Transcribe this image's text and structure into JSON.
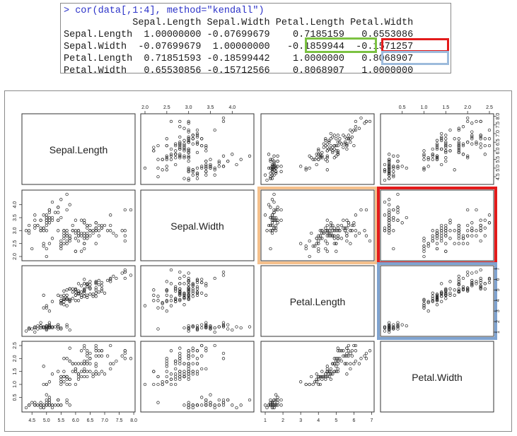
{
  "console": {
    "command": "> cor(data[,1:4], method=\"kendall\")",
    "column_headers": [
      "Sepal.Length",
      "Sepal.Width",
      "Petal.Length",
      "Petal.Width"
    ],
    "rows": [
      {
        "label": "Sepal.Length",
        "values": [
          "1.00000000",
          "-0.07699679",
          "0.7185159",
          "0.6553086"
        ]
      },
      {
        "label": "Sepal.Width",
        "values": [
          "-0.07699679",
          "1.00000000",
          "-0.1859944",
          "-0.1571257"
        ]
      },
      {
        "label": "Petal.Length",
        "values": [
          "0.71851593",
          "-0.18599442",
          "1.0000000",
          "0.8068907"
        ]
      },
      {
        "label": "Petal.Width",
        "values": [
          "0.65530856",
          "-0.15712566",
          "0.8068907",
          "1.0000000"
        ]
      }
    ],
    "highlight_colors": {
      "green": "#7cc242",
      "red": "#e31b1b",
      "blue": "#9dbbdc"
    }
  },
  "chart_data": {
    "type": "scatter",
    "variables": [
      "Sepal.Length",
      "Sepal.Width",
      "Petal.Length",
      "Petal.Width"
    ],
    "ticks": {
      "Sepal.Length": [
        "4.5",
        "5.0",
        "5.5",
        "6.0",
        "6.5",
        "7.0",
        "7.5",
        "8.0"
      ],
      "Sepal.Width": [
        "2.0",
        "2.5",
        "3.0",
        "3.5",
        "4.0"
      ],
      "Petal.Length": [
        "1",
        "2",
        "3",
        "4",
        "5",
        "6",
        "7"
      ],
      "Petal.Width": [
        "0.5",
        "1.0",
        "1.5",
        "2.0",
        "2.5"
      ]
    },
    "ranges": {
      "Sepal.Length": [
        4.3,
        7.9
      ],
      "Sepal.Width": [
        2.0,
        4.4
      ],
      "Petal.Length": [
        1.0,
        6.9
      ],
      "Petal.Width": [
        0.1,
        2.5
      ]
    },
    "highlighted_panels": [
      {
        "row": "Sepal.Width",
        "col": "Petal.Length",
        "color": "#f5c08c"
      },
      {
        "row": "Sepal.Width",
        "col": "Petal.Width",
        "color": "#e31b1b"
      },
      {
        "row": "Petal.Length",
        "col": "Petal.Width",
        "color": "#7fa3d0"
      }
    ],
    "point_style": "open-circle",
    "data": [
      [
        5.1,
        3.5,
        1.4,
        0.2
      ],
      [
        4.9,
        3.0,
        1.4,
        0.2
      ],
      [
        4.7,
        3.2,
        1.3,
        0.2
      ],
      [
        4.6,
        3.1,
        1.5,
        0.2
      ],
      [
        5.0,
        3.6,
        1.4,
        0.2
      ],
      [
        5.4,
        3.9,
        1.7,
        0.4
      ],
      [
        4.6,
        3.4,
        1.4,
        0.3
      ],
      [
        5.0,
        3.4,
        1.5,
        0.2
      ],
      [
        4.4,
        2.9,
        1.4,
        0.2
      ],
      [
        4.9,
        3.1,
        1.5,
        0.1
      ],
      [
        5.4,
        3.7,
        1.5,
        0.2
      ],
      [
        4.8,
        3.4,
        1.6,
        0.2
      ],
      [
        4.8,
        3.0,
        1.4,
        0.1
      ],
      [
        4.3,
        3.0,
        1.1,
        0.1
      ],
      [
        5.8,
        4.0,
        1.2,
        0.2
      ],
      [
        5.7,
        4.4,
        1.5,
        0.4
      ],
      [
        5.4,
        3.9,
        1.3,
        0.4
      ],
      [
        5.1,
        3.5,
        1.4,
        0.3
      ],
      [
        5.7,
        3.8,
        1.7,
        0.3
      ],
      [
        5.1,
        3.8,
        1.5,
        0.3
      ],
      [
        5.4,
        3.4,
        1.7,
        0.2
      ],
      [
        5.1,
        3.7,
        1.5,
        0.4
      ],
      [
        4.6,
        3.6,
        1.0,
        0.2
      ],
      [
        5.1,
        3.3,
        1.7,
        0.5
      ],
      [
        4.8,
        3.4,
        1.9,
        0.2
      ],
      [
        5.0,
        3.0,
        1.6,
        0.2
      ],
      [
        5.0,
        3.4,
        1.6,
        0.4
      ],
      [
        5.2,
        3.5,
        1.5,
        0.2
      ],
      [
        5.2,
        3.4,
        1.4,
        0.2
      ],
      [
        4.7,
        3.2,
        1.6,
        0.2
      ],
      [
        4.8,
        3.1,
        1.6,
        0.2
      ],
      [
        5.4,
        3.4,
        1.5,
        0.4
      ],
      [
        5.2,
        4.1,
        1.5,
        0.1
      ],
      [
        5.5,
        4.2,
        1.4,
        0.2
      ],
      [
        4.9,
        3.1,
        1.5,
        0.2
      ],
      [
        5.0,
        3.2,
        1.2,
        0.2
      ],
      [
        5.5,
        3.5,
        1.3,
        0.2
      ],
      [
        4.9,
        3.6,
        1.4,
        0.1
      ],
      [
        4.4,
        3.0,
        1.3,
        0.2
      ],
      [
        5.1,
        3.4,
        1.5,
        0.2
      ],
      [
        5.0,
        3.5,
        1.3,
        0.3
      ],
      [
        4.5,
        2.3,
        1.3,
        0.3
      ],
      [
        4.4,
        3.2,
        1.3,
        0.2
      ],
      [
        5.0,
        3.5,
        1.6,
        0.6
      ],
      [
        5.1,
        3.8,
        1.9,
        0.4
      ],
      [
        4.8,
        3.0,
        1.4,
        0.3
      ],
      [
        5.1,
        3.8,
        1.6,
        0.2
      ],
      [
        4.6,
        3.2,
        1.4,
        0.2
      ],
      [
        5.3,
        3.7,
        1.5,
        0.2
      ],
      [
        5.0,
        3.3,
        1.4,
        0.2
      ],
      [
        7.0,
        3.2,
        4.7,
        1.4
      ],
      [
        6.4,
        3.2,
        4.5,
        1.5
      ],
      [
        6.9,
        3.1,
        4.9,
        1.5
      ],
      [
        5.5,
        2.3,
        4.0,
        1.3
      ],
      [
        6.5,
        2.8,
        4.6,
        1.5
      ],
      [
        5.7,
        2.8,
        4.5,
        1.3
      ],
      [
        6.3,
        3.3,
        4.7,
        1.6
      ],
      [
        4.9,
        2.4,
        3.3,
        1.0
      ],
      [
        6.6,
        2.9,
        4.6,
        1.3
      ],
      [
        5.2,
        2.7,
        3.9,
        1.4
      ],
      [
        5.0,
        2.0,
        3.5,
        1.0
      ],
      [
        5.9,
        3.0,
        4.2,
        1.5
      ],
      [
        6.0,
        2.2,
        4.0,
        1.0
      ],
      [
        6.1,
        2.9,
        4.7,
        1.4
      ],
      [
        5.6,
        2.9,
        3.6,
        1.3
      ],
      [
        6.7,
        3.1,
        4.4,
        1.4
      ],
      [
        5.6,
        3.0,
        4.5,
        1.5
      ],
      [
        5.8,
        2.7,
        4.1,
        1.0
      ],
      [
        6.2,
        2.2,
        4.5,
        1.5
      ],
      [
        5.6,
        2.5,
        3.9,
        1.1
      ],
      [
        5.9,
        3.2,
        4.8,
        1.8
      ],
      [
        6.1,
        2.8,
        4.0,
        1.3
      ],
      [
        6.3,
        2.5,
        4.9,
        1.5
      ],
      [
        6.1,
        2.8,
        4.7,
        1.2
      ],
      [
        6.4,
        2.9,
        4.3,
        1.3
      ],
      [
        6.6,
        3.0,
        4.4,
        1.4
      ],
      [
        6.8,
        2.8,
        4.8,
        1.4
      ],
      [
        6.7,
        3.0,
        5.0,
        1.7
      ],
      [
        6.0,
        2.9,
        4.5,
        1.5
      ],
      [
        5.7,
        2.6,
        3.5,
        1.0
      ],
      [
        5.5,
        2.4,
        3.8,
        1.1
      ],
      [
        5.5,
        2.4,
        3.7,
        1.0
      ],
      [
        5.8,
        2.7,
        3.9,
        1.2
      ],
      [
        6.0,
        2.7,
        5.1,
        1.6
      ],
      [
        5.4,
        3.0,
        4.5,
        1.5
      ],
      [
        6.0,
        3.4,
        4.5,
        1.6
      ],
      [
        6.7,
        3.1,
        4.7,
        1.5
      ],
      [
        6.3,
        2.3,
        4.4,
        1.3
      ],
      [
        5.6,
        3.0,
        4.1,
        1.3
      ],
      [
        5.5,
        2.5,
        4.0,
        1.3
      ],
      [
        5.5,
        2.6,
        4.4,
        1.2
      ],
      [
        6.1,
        3.0,
        4.6,
        1.4
      ],
      [
        5.8,
        2.6,
        4.0,
        1.2
      ],
      [
        5.0,
        2.3,
        3.3,
        1.0
      ],
      [
        5.6,
        2.7,
        4.2,
        1.3
      ],
      [
        5.7,
        3.0,
        4.2,
        1.2
      ],
      [
        5.7,
        2.9,
        4.2,
        1.3
      ],
      [
        6.2,
        2.9,
        4.3,
        1.3
      ],
      [
        5.1,
        2.5,
        3.0,
        1.1
      ],
      [
        5.7,
        2.8,
        4.1,
        1.3
      ],
      [
        6.3,
        3.3,
        6.0,
        2.5
      ],
      [
        5.8,
        2.7,
        5.1,
        1.9
      ],
      [
        7.1,
        3.0,
        5.9,
        2.1
      ],
      [
        6.3,
        2.9,
        5.6,
        1.8
      ],
      [
        6.5,
        3.0,
        5.8,
        2.2
      ],
      [
        7.6,
        3.0,
        6.6,
        2.1
      ],
      [
        4.9,
        2.5,
        4.5,
        1.7
      ],
      [
        7.3,
        2.9,
        6.3,
        1.8
      ],
      [
        6.7,
        2.5,
        5.8,
        1.8
      ],
      [
        7.2,
        3.6,
        6.1,
        2.5
      ],
      [
        6.5,
        3.2,
        5.1,
        2.0
      ],
      [
        6.4,
        2.7,
        5.3,
        1.9
      ],
      [
        6.8,
        3.0,
        5.5,
        2.1
      ],
      [
        5.7,
        2.5,
        5.0,
        2.0
      ],
      [
        5.8,
        2.8,
        5.1,
        2.4
      ],
      [
        6.4,
        3.2,
        5.3,
        2.3
      ],
      [
        6.5,
        3.0,
        5.5,
        1.8
      ],
      [
        7.7,
        3.8,
        6.7,
        2.2
      ],
      [
        7.7,
        2.6,
        6.9,
        2.3
      ],
      [
        6.0,
        2.2,
        5.0,
        1.5
      ],
      [
        6.9,
        3.2,
        5.7,
        2.3
      ],
      [
        5.6,
        2.8,
        4.9,
        2.0
      ],
      [
        7.7,
        2.8,
        6.7,
        2.0
      ],
      [
        6.3,
        2.7,
        4.9,
        1.8
      ],
      [
        6.7,
        3.3,
        5.7,
        2.1
      ],
      [
        7.2,
        3.2,
        6.0,
        1.8
      ],
      [
        6.2,
        2.8,
        4.8,
        1.8
      ],
      [
        6.1,
        3.0,
        4.9,
        1.8
      ],
      [
        6.4,
        2.8,
        5.6,
        2.1
      ],
      [
        7.2,
        3.0,
        5.8,
        1.6
      ],
      [
        7.4,
        2.8,
        6.1,
        1.9
      ],
      [
        7.9,
        3.8,
        6.4,
        2.0
      ],
      [
        6.4,
        2.8,
        5.6,
        2.2
      ],
      [
        6.3,
        2.8,
        5.1,
        1.5
      ],
      [
        6.1,
        2.6,
        5.6,
        1.4
      ],
      [
        7.7,
        3.0,
        6.1,
        2.3
      ],
      [
        6.3,
        3.4,
        5.6,
        2.4
      ],
      [
        6.4,
        3.1,
        5.5,
        1.8
      ],
      [
        6.0,
        3.0,
        4.8,
        1.8
      ],
      [
        6.9,
        3.1,
        5.4,
        2.1
      ],
      [
        6.7,
        3.1,
        5.6,
        2.4
      ],
      [
        6.9,
        3.1,
        5.1,
        2.3
      ],
      [
        5.8,
        2.7,
        5.1,
        1.9
      ],
      [
        6.8,
        3.2,
        5.9,
        2.3
      ],
      [
        6.7,
        3.3,
        5.7,
        2.5
      ],
      [
        6.7,
        3.0,
        5.2,
        2.3
      ],
      [
        6.3,
        2.5,
        5.0,
        1.9
      ],
      [
        6.5,
        3.0,
        5.2,
        2.0
      ],
      [
        6.2,
        3.4,
        5.4,
        2.3
      ],
      [
        5.9,
        3.0,
        5.1,
        1.8
      ]
    ]
  }
}
